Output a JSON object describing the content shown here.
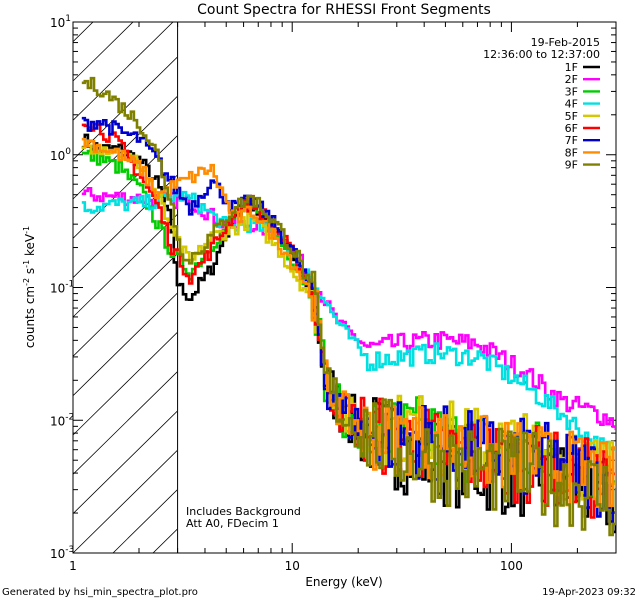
{
  "chart_data": {
    "type": "line",
    "title": "Count Spectra for RHESSI Front Segments",
    "xlabel": "Energy (keV)",
    "ylabel": "counts cm^-2 s^-1 keV^-1",
    "ylabel_parts": {
      "a": "counts cm",
      "b": "-2",
      "c": " s",
      "d": "-1",
      "e": " keV",
      "f": "-1"
    },
    "xscale": "log",
    "yscale": "log",
    "xlim": [
      1,
      300
    ],
    "ylim": [
      0.001,
      10
    ],
    "x_ticks": [
      {
        "value": 1,
        "label": "1"
      },
      {
        "value": 10,
        "label": "10"
      },
      {
        "value": 100,
        "label": "100"
      }
    ],
    "y_ticks": [
      {
        "value": 0.001,
        "base": "10",
        "exp": "-3"
      },
      {
        "value": 0.01,
        "base": "10",
        "exp": "-2"
      },
      {
        "value": 0.1,
        "base": "10",
        "exp": "-1"
      },
      {
        "value": 1,
        "base": "10",
        "exp": "0"
      },
      {
        "value": 10,
        "base": "10",
        "exp": "1"
      }
    ],
    "hatched_region_kev": [
      1,
      3
    ],
    "date": "19-Feb-2015",
    "time_range": "12:36:00 to 12:37:00",
    "annotation_line1": "Includes Background",
    "annotation_line2": "Att A0, FDecim 1",
    "legend_position": "top-right",
    "series": [
      {
        "name": "1F",
        "color": "#000000",
        "low": [
          [
            1.1,
            1.3
          ],
          [
            1.3,
            1.1
          ],
          [
            1.6,
            1.1
          ],
          [
            2.0,
            0.9
          ],
          [
            2.4,
            0.6
          ],
          [
            2.7,
            0.35
          ],
          [
            3.0,
            0.1
          ],
          [
            3.4,
            0.085
          ]
        ],
        "peak": 0.42,
        "tail": 0.0045,
        "noise": 0.35
      },
      {
        "name": "2F",
        "color": "#ff00ff",
        "low": [
          [
            1.1,
            0.5
          ],
          [
            1.6,
            0.48
          ],
          [
            2.4,
            0.46
          ],
          [
            3.0,
            0.45
          ],
          [
            3.6,
            0.42
          ]
        ],
        "peak": 0.3,
        "tail": 0.025,
        "noise": 0.08,
        "hump": true,
        "end": 0.0095
      },
      {
        "name": "3F",
        "color": "#00cc00",
        "low": [
          [
            1.1,
            1.0
          ],
          [
            1.3,
            0.95
          ],
          [
            1.6,
            0.8
          ],
          [
            2.0,
            0.55
          ],
          [
            2.4,
            0.3
          ],
          [
            2.8,
            0.18
          ],
          [
            3.4,
            0.13
          ]
        ],
        "peak": 0.4,
        "tail": 0.0065,
        "noise": 0.3
      },
      {
        "name": "4F",
        "color": "#00e0e0",
        "low": [
          [
            1.1,
            0.4
          ],
          [
            1.5,
            0.42
          ],
          [
            2.0,
            0.43
          ],
          [
            2.5,
            0.45
          ],
          [
            3.0,
            0.5
          ],
          [
            3.5,
            0.45
          ]
        ],
        "peak": 0.3,
        "tail": 0.02,
        "noise": 0.08,
        "hump": true,
        "end": 0.0055
      },
      {
        "name": "5F",
        "color": "#d4c800",
        "low": [
          [
            1.1,
            1.2
          ],
          [
            1.5,
            1.1
          ],
          [
            2.0,
            0.85
          ],
          [
            2.4,
            0.5
          ],
          [
            2.8,
            0.25
          ],
          [
            3.4,
            0.15
          ]
        ],
        "peak": 0.33,
        "tail": 0.007,
        "noise": 0.3
      },
      {
        "name": "6F",
        "color": "#ff0000",
        "low": [
          [
            1.1,
            1.9
          ],
          [
            1.3,
            1.6
          ],
          [
            1.6,
            1.2
          ],
          [
            2.0,
            0.7
          ],
          [
            2.4,
            0.42
          ],
          [
            2.8,
            0.2
          ],
          [
            3.4,
            0.12
          ]
        ],
        "peak": 0.44,
        "tail": 0.0055,
        "noise": 0.32
      },
      {
        "name": "7F",
        "color": "#0000cc",
        "low": [
          [
            1.1,
            1.7
          ],
          [
            1.3,
            1.8
          ],
          [
            1.6,
            1.5
          ],
          [
            2.0,
            1.3
          ],
          [
            2.4,
            0.9
          ],
          [
            2.8,
            0.6
          ],
          [
            3.4,
            0.4
          ]
        ],
        "peak": 0.46,
        "tail": 0.006,
        "noise": 0.32
      },
      {
        "name": "8F",
        "color": "#ff8c00",
        "low": [
          [
            1.1,
            1.3
          ],
          [
            1.6,
            1.0
          ],
          [
            2.0,
            0.8
          ],
          [
            2.4,
            0.5
          ]
        ],
        "peak": 0.38,
        "tail": 0.006,
        "noise": 0.3
      },
      {
        "name": "9F",
        "color": "#808000",
        "low": [
          [
            1.1,
            3.5
          ],
          [
            1.3,
            3.2
          ],
          [
            1.6,
            2.4
          ],
          [
            2.0,
            1.7
          ],
          [
            2.4,
            1.0
          ],
          [
            2.8,
            0.4
          ],
          [
            3.2,
            0.15
          ]
        ],
        "peak": 0.48,
        "tail": 0.0045,
        "noise": 0.35
      }
    ]
  },
  "footer": {
    "generated_by": "Generated by hsi_min_spectra_plot.pro",
    "timestamp": "19-Apr-2023 09:32"
  }
}
